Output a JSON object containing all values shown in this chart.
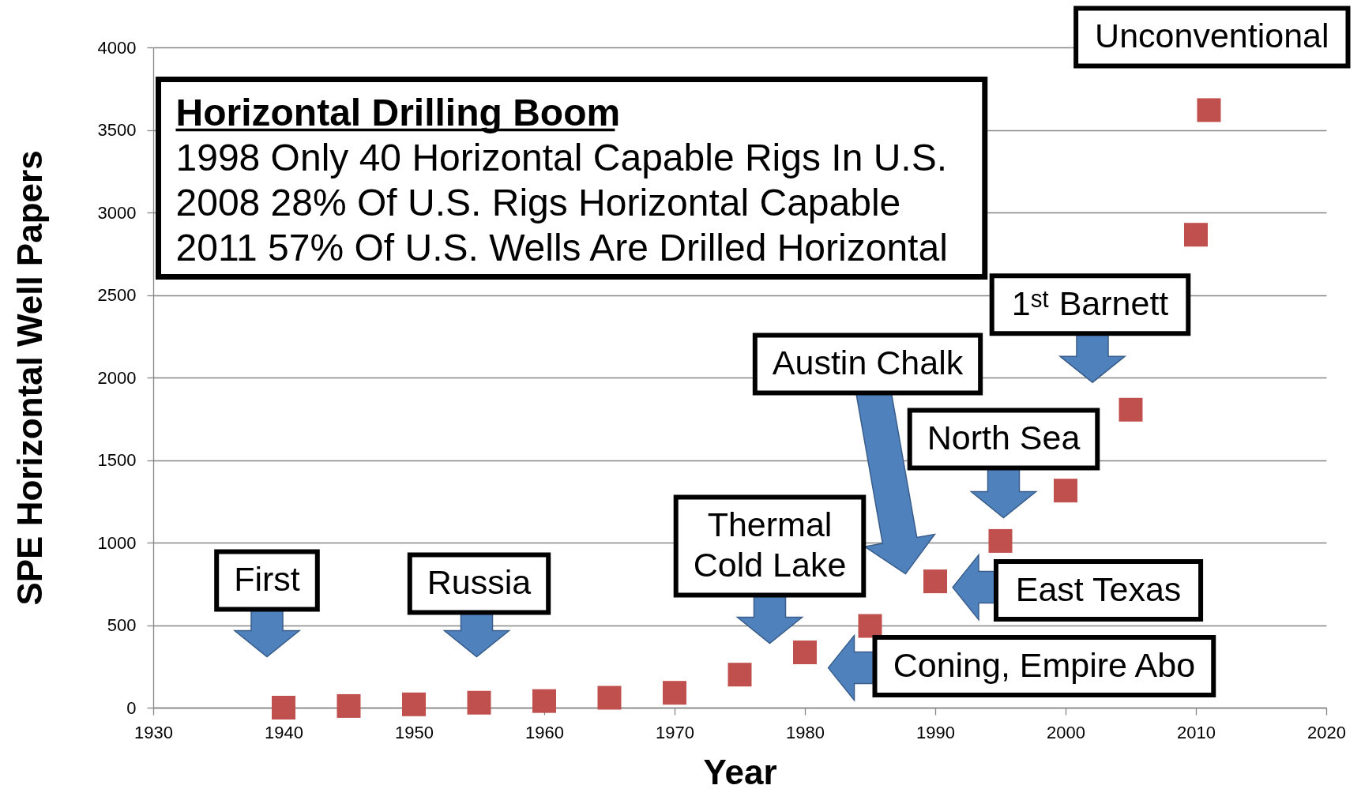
{
  "chart_data": {
    "type": "scatter",
    "xlabel": "Year",
    "ylabel": "SPE Horizontal Well Papers",
    "x": [
      1940,
      1945,
      1950,
      1955,
      1960,
      1965,
      1970,
      1975,
      1980,
      1985,
      1990,
      1995,
      2000,
      2005,
      2010,
      2011
    ],
    "series": [
      {
        "color": "#c0504d",
        "values": [
          0,
          10,
          20,
          30,
          40,
          60,
          90,
          200,
          335,
          495,
          765,
          1010,
          1315,
          1805,
          2865,
          3620
        ]
      }
    ],
    "xlim": [
      1930,
      2020
    ],
    "xticks": [
      1930,
      1940,
      1950,
      1960,
      1970,
      1980,
      1990,
      2000,
      2010,
      2020
    ],
    "ylim": [
      0,
      4000
    ],
    "yticks": [
      0,
      500,
      1000,
      1500,
      2000,
      2500,
      3000,
      3500,
      4000
    ],
    "grid": "y",
    "marker": "square",
    "annotations": [
      "Horizontal Drilling Boom",
      "1998 Only 40 Horizontal Capable Rigs In U.S.",
      "2008 28% Of U.S. Rigs Horizontal Capable",
      "2011 57% Of U.S. Wells Are Drilled Horizontal",
      "Unconventional",
      "First",
      "Russia",
      "Thermal\nCold Lake",
      "Coning, Empire Abo",
      "Austin Chalk",
      "East Texas",
      "North Sea",
      "1ˢᵗ Barnett"
    ]
  }
}
